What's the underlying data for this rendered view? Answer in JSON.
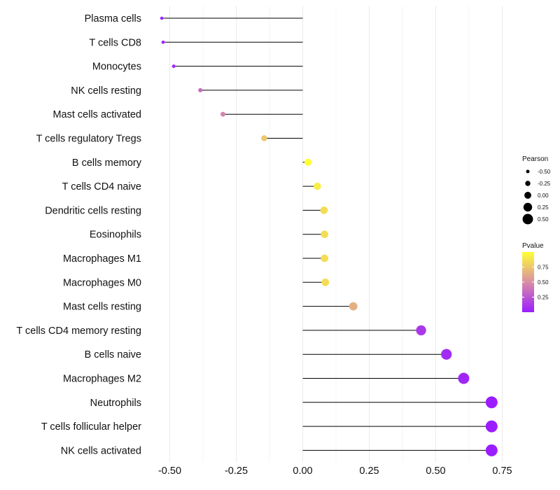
{
  "chart_data": {
    "type": "lollipop",
    "title": "",
    "xlabel": "",
    "ylabel": "",
    "xlim": [
      -0.58,
      0.77
    ],
    "x_ticks": [
      -0.5,
      -0.25,
      0.0,
      0.25,
      0.5,
      0.75
    ],
    "x_tick_labels": [
      "-0.50",
      "-0.25",
      "0.00",
      "0.25",
      "0.50",
      "0.75"
    ],
    "grid": "vertical major and minor",
    "baseline": 0,
    "categories": [
      "Plasma cells",
      "T cells CD8",
      "Monocytes",
      "NK cells resting",
      "Mast cells activated",
      "T cells regulatory  Tregs ",
      "B cells memory",
      "T cells CD4 naive",
      "Dendritic cells resting",
      "Eosinophils",
      "Macrophages M1",
      "Macrophages M0",
      "Mast cells resting",
      "T cells CD4 memory resting",
      "B cells naive",
      "Macrophages M2",
      "Neutrophils",
      "T cells follicular helper",
      "NK cells activated"
    ],
    "pearson": [
      -0.53,
      -0.525,
      -0.485,
      -0.385,
      -0.3,
      -0.145,
      0.02,
      0.055,
      0.08,
      0.082,
      0.082,
      0.085,
      0.19,
      0.445,
      0.54,
      0.605,
      0.71,
      0.71,
      0.71
    ],
    "pvalue": [
      0.02,
      0.02,
      0.05,
      0.35,
      0.45,
      0.75,
      1.0,
      0.92,
      0.85,
      0.85,
      0.85,
      0.85,
      0.65,
      0.12,
      0.06,
      0.04,
      0.0,
      0.0,
      0.0
    ],
    "legend_size": {
      "title": "Pearson",
      "labels": [
        "-0.50",
        "-0.25",
        "0.00",
        "0.25",
        "0.50"
      ],
      "values": [
        -0.5,
        -0.25,
        0.0,
        0.25,
        0.5
      ],
      "placement": "right"
    },
    "legend_color": {
      "title": "Pvalue",
      "labels": [
        "0.75",
        "0.50",
        "0.25"
      ],
      "values": [
        0.75,
        0.5,
        0.25
      ],
      "low_color": "#9b1dff",
      "mid_color": "#d98ea5",
      "high_color": "#ffff33",
      "placement": "right"
    },
    "colors": {
      "stem": "#000000",
      "grid": "#ebebeb",
      "text": "#111111"
    }
  }
}
